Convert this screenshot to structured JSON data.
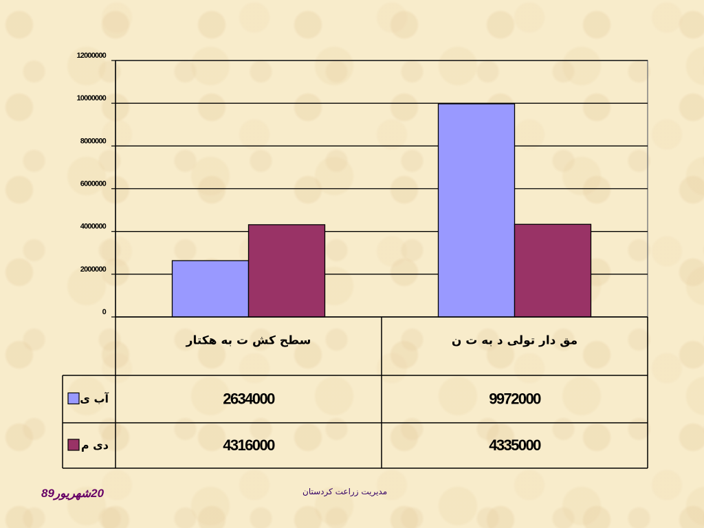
{
  "chart_data": {
    "type": "bar",
    "categories": [
      "سطح کشت به هکتار",
      "مقدار تولید به تن"
    ],
    "series": [
      {
        "name": "آبی",
        "values": [
          2634000,
          9972000
        ],
        "color": "#9999ff"
      },
      {
        "name": "دیم",
        "values": [
          4316000,
          4335000
        ],
        "color": "#993366"
      }
    ],
    "category_labels_display": [
      "سطح کش ت به هکتار",
      "مق دار تولی د به ت ن"
    ],
    "series_labels_display": [
      "آب ی",
      "دی م"
    ],
    "table_values_display": [
      [
        "2634000",
        "9972000"
      ],
      [
        "4316000",
        "4335000"
      ]
    ],
    "yticks": [
      "0",
      "2000000",
      "4000000",
      "6000000",
      "8000000",
      "10000000",
      "12000000"
    ],
    "ylim": [
      0,
      12000000
    ],
    "grid": true,
    "legend": "data-table"
  },
  "footer": {
    "date": "20شهریور89",
    "organization": "مدیریت زراعت کردستان"
  }
}
